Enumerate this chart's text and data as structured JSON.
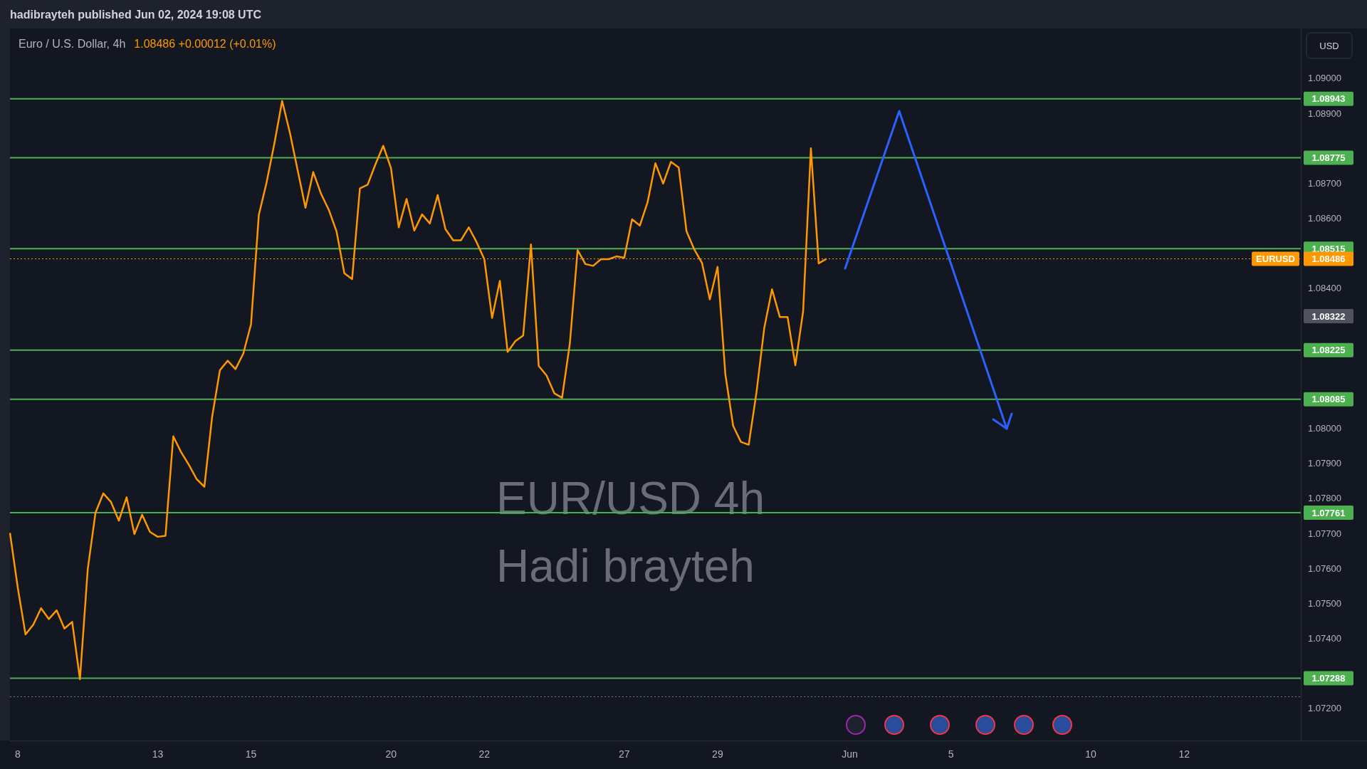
{
  "chart_data": {
    "type": "line",
    "title": "hadibrayteh published Jun 02, 2024 19:08 UTC",
    "subtitle": "Euro / U.S. Dollar, 4h",
    "ylabel": "USD",
    "categories": [
      null,
      "8",
      null,
      null,
      null,
      null,
      null,
      null,
      null,
      null,
      null,
      null,
      null,
      null,
      null,
      null,
      null,
      null,
      null,
      "13",
      null,
      null,
      null,
      null,
      null,
      null,
      null,
      null,
      null,
      null,
      null,
      "15",
      null,
      null,
      null,
      null,
      null,
      null,
      null,
      null,
      null,
      null,
      null,
      null,
      null,
      null,
      null,
      null,
      null,
      "20",
      null,
      null,
      null,
      null,
      null,
      null,
      null,
      null,
      null,
      null,
      null,
      "22",
      null,
      null,
      null,
      null,
      null,
      null,
      null,
      null,
      null,
      null,
      null,
      null,
      null,
      null,
      null,
      null,
      null,
      "27",
      null,
      null,
      null,
      null,
      null,
      null,
      null,
      null,
      null,
      null,
      null,
      "29",
      null,
      null,
      null,
      null,
      null,
      null,
      null,
      null,
      null,
      null,
      null,
      null,
      null,
      null,
      null,
      null,
      "Jun",
      null,
      null,
      null,
      null,
      null,
      null,
      null,
      null,
      null,
      null,
      null,
      null,
      "5",
      null,
      null,
      null,
      null,
      null,
      null,
      null,
      null,
      null,
      null,
      null,
      null,
      null,
      null,
      null,
      null,
      null,
      "10",
      null,
      null,
      null,
      null,
      null,
      null,
      null,
      null,
      null,
      null,
      null,
      "12",
      null,
      null,
      null,
      null,
      null,
      null,
      null,
      null,
      null,
      null,
      null,
      null,
      null,
      null,
      null
    ],
    "series": [
      {
        "color": "#ff9800",
        "values": [
          1.07703,
          1.07547,
          1.07413,
          1.07441,
          1.07488,
          1.07457,
          1.07482,
          1.0743,
          1.07449,
          1.07285,
          1.07599,
          1.07761,
          1.07816,
          1.07791,
          1.07738,
          1.07805,
          1.077,
          1.07755,
          1.07706,
          1.07692,
          1.07695,
          1.07979,
          1.07934,
          1.07898,
          1.07857,
          1.07835,
          1.08035,
          1.08168,
          1.08195,
          1.08171,
          1.08215,
          1.08299,
          1.08611,
          1.08704,
          1.08815,
          1.08937,
          1.08846,
          1.08739,
          1.08632,
          1.08734,
          1.08672,
          1.08626,
          1.08564,
          1.08445,
          1.08428,
          1.08687,
          1.08698,
          1.08756,
          1.08809,
          1.08745,
          1.08576,
          1.08657,
          1.08567,
          1.08613,
          1.08587,
          1.08668,
          1.08571,
          1.08539,
          1.08539,
          1.08576,
          1.08534,
          1.08485,
          1.08317,
          1.08423,
          1.0822,
          1.08251,
          1.08267,
          1.08527,
          1.0818,
          1.08153,
          1.08102,
          1.08089,
          1.08244,
          1.08511,
          1.08471,
          1.08466,
          1.08485,
          1.08485,
          1.08493,
          1.08489,
          1.08599,
          1.08581,
          1.08648,
          1.08759,
          1.08701,
          1.08763,
          1.08747,
          1.08565,
          1.08513,
          1.08474,
          1.0837,
          1.08463,
          1.08156,
          1.08009,
          1.07963,
          1.07955,
          1.08104,
          1.08288,
          1.08399,
          1.0832,
          1.0832,
          1.08182,
          1.08336,
          1.08802,
          1.08473,
          1.08486,
          null,
          null,
          null,
          null,
          null,
          null,
          null,
          null,
          null,
          null,
          null,
          null,
          null,
          null,
          null,
          null,
          null,
          null,
          null,
          null,
          null,
          null,
          null,
          null,
          null,
          null,
          null,
          null,
          null,
          null,
          null,
          null,
          null,
          null,
          null,
          null,
          null,
          null,
          null,
          null,
          null,
          null,
          null,
          null,
          null,
          null,
          null,
          null,
          null,
          null,
          null,
          null,
          null,
          null,
          null,
          null,
          null,
          null,
          null,
          null,
          null
        ]
      }
    ],
    "ylim": [
      1.0711,
      1.0914
    ],
    "yticks": [
      {
        "value": 1.072,
        "label": "1.07200"
      },
      {
        "value": 1.074,
        "label": "1.07400"
      },
      {
        "value": 1.075,
        "label": "1.07500"
      },
      {
        "value": 1.076,
        "label": "1.07600"
      },
      {
        "value": 1.077,
        "label": "1.07700"
      },
      {
        "value": 1.078,
        "label": "1.07800"
      },
      {
        "value": 1.079,
        "label": "1.07900"
      },
      {
        "value": 1.08,
        "label": "1.08000"
      },
      {
        "value": 1.084,
        "label": "1.08400"
      },
      {
        "value": 1.086,
        "label": "1.08600"
      },
      {
        "value": 1.087,
        "label": "1.08700"
      },
      {
        "value": 1.089,
        "label": "1.08900"
      },
      {
        "value": 1.09,
        "label": "1.09000"
      }
    ],
    "ref_lines": [
      {
        "axis": "y",
        "value": 1.08943,
        "color": "#4caf50",
        "label": "1.08943"
      },
      {
        "axis": "y",
        "value": 1.08775,
        "color": "#4caf50",
        "label": "1.08775"
      },
      {
        "axis": "y",
        "value": 1.08515,
        "color": "#4caf50",
        "label": "1.08515"
      },
      {
        "axis": "y",
        "value": 1.08225,
        "color": "#4caf50",
        "label": "1.08225"
      },
      {
        "axis": "y",
        "value": 1.08085,
        "color": "#4caf50",
        "label": "1.08085"
      },
      {
        "axis": "y",
        "value": 1.07761,
        "color": "#4caf50",
        "label": "1.07761"
      },
      {
        "axis": "y",
        "value": 1.07288,
        "color": "#4caf50",
        "label": "1.07288"
      },
      {
        "axis": "y",
        "value": 1.08486,
        "color": "#ff9800",
        "line_style": "dotted",
        "label": "EURUSD"
      },
      {
        "axis": "y",
        "value": 1.07235,
        "color": "#787b86",
        "line_style": "dotted"
      }
    ],
    "annotations": [
      "1.08486 +0.00012 (+0.01%)",
      "EUR/USD 4h",
      "Hadi brayteh",
      "1.08322",
      "1.08486"
    ],
    "legend": false,
    "marker": "none",
    "line_style": "solid"
  }
}
